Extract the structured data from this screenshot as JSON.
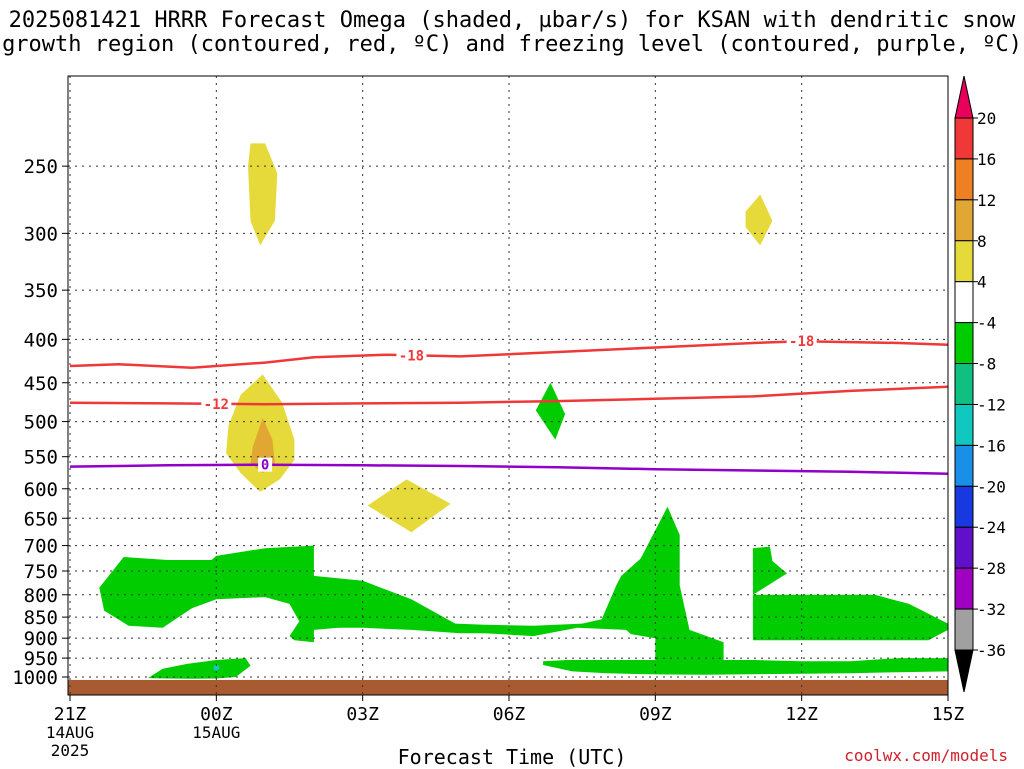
{
  "title_line1": "2025081421 HRRR Forecast Omega (shaded, µbar/s) for KSAN with dendritic snow",
  "title_line2": "growth region (contoured, red, ºC) and freezing level (contoured, purple, ºC)",
  "credit": "coolwx.com/models",
  "chart_data": {
    "type": "contour",
    "xlabel": "Forecast Time (UTC)",
    "ylabel": "",
    "x_ticks": [
      {
        "h": 0,
        "label": "21Z",
        "sub": [
          "14AUG",
          "2025"
        ]
      },
      {
        "h": 3,
        "label": "00Z",
        "sub": [
          "15AUG"
        ]
      },
      {
        "h": 6,
        "label": "03Z",
        "sub": []
      },
      {
        "h": 9,
        "label": "06Z",
        "sub": []
      },
      {
        "h": 12,
        "label": "09Z",
        "sub": []
      },
      {
        "h": 15,
        "label": "12Z",
        "sub": []
      },
      {
        "h": 18,
        "label": "15Z",
        "sub": []
      }
    ],
    "xlim": [
      0,
      18
    ],
    "ylim": [
      200,
      1025
    ],
    "y_scale": "log-pressure",
    "y_ticks": [
      250,
      300,
      350,
      400,
      450,
      500,
      550,
      600,
      650,
      700,
      750,
      800,
      850,
      900,
      950,
      1000
    ],
    "grid": true,
    "ground_level_hpa": 1008,
    "colorbar": {
      "labels": [
        20,
        16,
        12,
        8,
        4,
        -4,
        -8,
        -12,
        -16,
        -20,
        -24,
        -28,
        -32,
        -36
      ],
      "colors": [
        "#e8005a",
        "#f03838",
        "#ee7f22",
        "#e0a832",
        "#e6da3a",
        "#ffffff",
        "#00cc00",
        "#10c080",
        "#10c8c0",
        "#1890e8",
        "#1838e0",
        "#6010c8",
        "#a000c0",
        "#a0a0a0",
        "#000000"
      ]
    },
    "contours": [
      {
        "name": "-18",
        "color": "#f03838",
        "label_h": [
          7,
          15
        ],
        "points": [
          [
            0,
            430
          ],
          [
            1,
            428
          ],
          [
            2.5,
            432
          ],
          [
            4,
            426
          ],
          [
            5,
            420
          ],
          [
            6.5,
            417
          ],
          [
            8,
            419
          ],
          [
            10,
            414
          ],
          [
            12,
            409
          ],
          [
            14,
            404
          ],
          [
            15,
            402
          ],
          [
            16,
            403
          ],
          [
            17,
            404
          ],
          [
            18,
            406
          ]
        ]
      },
      {
        "name": "-12",
        "color": "#f03838",
        "label_h": [
          3
        ],
        "points": [
          [
            0,
            475
          ],
          [
            2,
            476
          ],
          [
            4,
            477
          ],
          [
            6,
            476
          ],
          [
            8,
            475
          ],
          [
            10,
            473
          ],
          [
            12,
            470
          ],
          [
            14,
            467
          ],
          [
            16,
            460
          ],
          [
            18,
            455
          ]
        ]
      },
      {
        "name": "0",
        "color": "#9000c8",
        "label_h": [
          4
        ],
        "points": [
          [
            0,
            565
          ],
          [
            2,
            563
          ],
          [
            4,
            562
          ],
          [
            6,
            563
          ],
          [
            8,
            564
          ],
          [
            10,
            566
          ],
          [
            12,
            569
          ],
          [
            14,
            571
          ],
          [
            16,
            573
          ],
          [
            18,
            576
          ]
        ]
      }
    ],
    "omega_regions": [
      {
        "value": 6,
        "points": [
          [
            3.7,
            235
          ],
          [
            4.0,
            235
          ],
          [
            4.25,
            255
          ],
          [
            4.2,
            290
          ],
          [
            3.9,
            310
          ],
          [
            3.7,
            290
          ],
          [
            3.65,
            250
          ]
        ]
      },
      {
        "value": 6,
        "points": [
          [
            13.85,
            283
          ],
          [
            14.15,
            270
          ],
          [
            14.4,
            290
          ],
          [
            14.15,
            310
          ],
          [
            13.85,
            295
          ]
        ]
      },
      {
        "value": 6,
        "points": [
          [
            3.25,
            505
          ],
          [
            3.5,
            465
          ],
          [
            3.95,
            440
          ],
          [
            4.35,
            475
          ],
          [
            4.6,
            525
          ],
          [
            4.6,
            555
          ],
          [
            4.3,
            585
          ],
          [
            3.9,
            605
          ],
          [
            3.5,
            575
          ],
          [
            3.2,
            545
          ]
        ]
      },
      {
        "value": 10,
        "points": [
          [
            3.75,
            535
          ],
          [
            3.95,
            495
          ],
          [
            4.15,
            525
          ],
          [
            4.2,
            560
          ],
          [
            3.95,
            575
          ],
          [
            3.7,
            560
          ]
        ]
      },
      {
        "value": 6,
        "points": [
          [
            6.1,
            628
          ],
          [
            6.9,
            585
          ],
          [
            7.8,
            625
          ],
          [
            7.0,
            675
          ]
        ]
      },
      {
        "value": -6,
        "points": [
          [
            9.55,
            485
          ],
          [
            9.85,
            450
          ],
          [
            10.15,
            490
          ],
          [
            9.95,
            525
          ]
        ]
      },
      {
        "value": -6,
        "points": [
          [
            0.6,
            785
          ],
          [
            1.1,
            722
          ],
          [
            2.0,
            728
          ],
          [
            2.9,
            728
          ],
          [
            3.0,
            720
          ],
          [
            4.0,
            705
          ],
          [
            5.0,
            700
          ],
          [
            5.0,
            760
          ],
          [
            6.0,
            770
          ],
          [
            7.0,
            810
          ],
          [
            7.9,
            865
          ],
          [
            8.5,
            868
          ],
          [
            9.5,
            870
          ],
          [
            10.5,
            865
          ],
          [
            10.9,
            855
          ],
          [
            11.2,
            780
          ],
          [
            11.3,
            760
          ],
          [
            11.7,
            725
          ],
          [
            12.25,
            630
          ],
          [
            12.5,
            680
          ],
          [
            12.5,
            780
          ],
          [
            12.7,
            880
          ],
          [
            13.4,
            910
          ],
          [
            13.4,
            955
          ],
          [
            12.7,
            955
          ],
          [
            12.0,
            955
          ],
          [
            12.0,
            900
          ],
          [
            11.5,
            890
          ],
          [
            11.4,
            880
          ],
          [
            10.4,
            875
          ],
          [
            9.5,
            895
          ],
          [
            8.5,
            888
          ],
          [
            8.0,
            888
          ],
          [
            7.0,
            880
          ],
          [
            6.0,
            875
          ],
          [
            5.5,
            875
          ],
          [
            5.0,
            880
          ],
          [
            5.0,
            910
          ],
          [
            4.6,
            905
          ],
          [
            4.5,
            895
          ],
          [
            4.7,
            860
          ],
          [
            4.5,
            820
          ],
          [
            4.0,
            805
          ],
          [
            3.0,
            810
          ],
          [
            2.5,
            830
          ],
          [
            1.9,
            875
          ],
          [
            1.2,
            870
          ],
          [
            0.7,
            835
          ]
        ]
      },
      {
        "value": -6,
        "points": [
          [
            14.0,
            705
          ],
          [
            14.35,
            702
          ],
          [
            14.4,
            730
          ],
          [
            14.7,
            755
          ],
          [
            14.0,
            800
          ],
          [
            15.5,
            800
          ],
          [
            16.5,
            800
          ],
          [
            17.2,
            820
          ],
          [
            18,
            865
          ],
          [
            18,
            880
          ],
          [
            17.6,
            905
          ],
          [
            16,
            905
          ],
          [
            15,
            905
          ],
          [
            14.0,
            905
          ]
        ]
      },
      {
        "value": -6,
        "points": [
          [
            1.6,
            1003
          ],
          [
            1.9,
            978
          ],
          [
            2.4,
            965
          ],
          [
            3.0,
            955
          ],
          [
            3.6,
            950
          ],
          [
            3.7,
            970
          ],
          [
            3.4,
            1000
          ],
          [
            3.0,
            1004
          ],
          [
            2.5,
            1005
          ],
          [
            2.0,
            1004
          ]
        ]
      },
      {
        "value": -6,
        "points": [
          [
            9.7,
            958
          ],
          [
            10.2,
            955
          ],
          [
            11.5,
            955
          ],
          [
            13.0,
            955
          ],
          [
            14.0,
            955
          ],
          [
            15.0,
            958
          ],
          [
            16.0,
            958
          ],
          [
            17.0,
            950
          ],
          [
            18,
            950
          ],
          [
            18,
            985
          ],
          [
            17,
            987
          ],
          [
            16,
            990
          ],
          [
            14.5,
            992
          ],
          [
            13,
            994
          ],
          [
            12,
            993
          ],
          [
            11,
            990
          ],
          [
            10.3,
            985
          ],
          [
            9.7,
            968
          ]
        ]
      }
    ],
    "markers": [
      {
        "h": 3.0,
        "p": 975,
        "color": "#10c8c0"
      }
    ]
  }
}
